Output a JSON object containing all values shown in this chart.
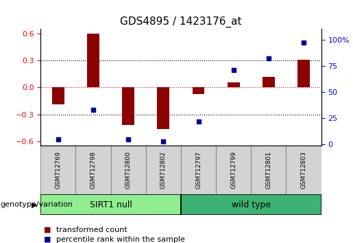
{
  "title": "GDS4895 / 1423176_at",
  "samples": [
    "GSM712769",
    "GSM712798",
    "GSM712800",
    "GSM712802",
    "GSM712797",
    "GSM712799",
    "GSM712801",
    "GSM712803"
  ],
  "transformed_count": [
    -0.19,
    0.6,
    -0.42,
    -0.46,
    -0.07,
    0.06,
    0.12,
    0.31
  ],
  "percentile_rank": [
    5,
    33,
    5,
    3,
    22,
    71,
    82,
    97
  ],
  "groups": [
    {
      "name": "SIRT1 null",
      "start": 0,
      "end": 4,
      "color": "#90EE90"
    },
    {
      "name": "wild type",
      "start": 4,
      "end": 8,
      "color": "#3CB371"
    }
  ],
  "bar_color": "#8B0000",
  "dot_color": "#000099",
  "ylim_left": [
    -0.65,
    0.65
  ],
  "ylim_right": [
    -1.3,
    110
  ],
  "yticks_left": [
    -0.6,
    -0.3,
    0,
    0.3,
    0.6
  ],
  "yticks_right": [
    0,
    25,
    50,
    75,
    100
  ],
  "hlines": [
    -0.3,
    0.0,
    0.3
  ],
  "hline_colors": [
    "black",
    "red",
    "black"
  ],
  "hline_styles": [
    "dotted",
    "dotted",
    "dotted"
  ],
  "legend_bar_label": "transformed count",
  "legend_dot_label": "percentile rank within the sample",
  "genotype_label": "genotype/variation",
  "sample_box_color": "#d3d3d3",
  "sample_box_edge": "#888888",
  "title_fontsize": 11
}
